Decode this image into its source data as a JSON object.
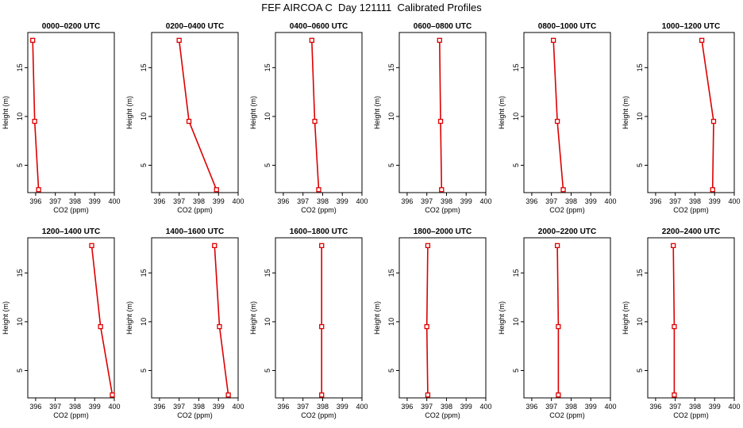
{
  "title": "FEF AIRCOA C  Day 121111  Calibrated Profiles",
  "style": {
    "line_color": "#dd0000",
    "axis_color": "#000000",
    "background": "#ffffff"
  },
  "chart_data": {
    "type": "line",
    "layout_grid": "2 rows x 6 columns",
    "grid": false,
    "legend": "none",
    "xlabel": "CO2 (ppm)",
    "ylabel": "Height (m)",
    "xlim": [
      395.6,
      400
    ],
    "ylim": [
      2.2,
      18.6
    ],
    "xticks": [
      396,
      397,
      398,
      399,
      400
    ],
    "yticks": [
      5,
      10,
      15
    ],
    "heights": [
      17.8,
      9.5,
      2.5
    ],
    "panels": [
      {
        "title": "0000–0200 UTC",
        "co2": [
          395.85,
          395.95,
          396.15
        ]
      },
      {
        "title": "0200–0400 UTC",
        "co2": [
          397.0,
          397.5,
          398.9
        ]
      },
      {
        "title": "0400–0600 UTC",
        "co2": [
          397.45,
          397.6,
          397.8
        ]
      },
      {
        "title": "0600–0800 UTC",
        "co2": [
          397.65,
          397.7,
          397.75
        ]
      },
      {
        "title": "0800–1000 UTC",
        "co2": [
          397.1,
          397.3,
          397.6
        ]
      },
      {
        "title": "1000–1200 UTC",
        "co2": [
          398.35,
          398.95,
          398.9
        ]
      },
      {
        "title": "1200–1400 UTC",
        "co2": [
          398.85,
          399.3,
          399.9
        ]
      },
      {
        "title": "1400–1600 UTC",
        "co2": [
          398.8,
          399.05,
          399.5
        ]
      },
      {
        "title": "1600–1800 UTC",
        "co2": [
          397.95,
          397.95,
          397.95
        ]
      },
      {
        "title": "1800–2000 UTC",
        "co2": [
          397.05,
          397.0,
          397.05
        ]
      },
      {
        "title": "2000–2200 UTC",
        "co2": [
          397.3,
          397.35,
          397.35
        ]
      },
      {
        "title": "2200–2400 UTC",
        "co2": [
          396.9,
          396.95,
          396.95
        ]
      }
    ]
  }
}
